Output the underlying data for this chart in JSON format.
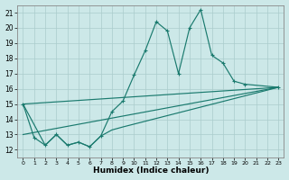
{
  "xlabel": "Humidex (Indice chaleur)",
  "xlim": [
    -0.5,
    23.5
  ],
  "ylim": [
    11.5,
    21.5
  ],
  "xticks": [
    0,
    1,
    2,
    3,
    4,
    5,
    6,
    7,
    8,
    9,
    10,
    11,
    12,
    13,
    14,
    15,
    16,
    17,
    18,
    19,
    20,
    21,
    22,
    23
  ],
  "yticks": [
    12,
    13,
    14,
    15,
    16,
    17,
    18,
    19,
    20,
    21
  ],
  "background_color": "#cce8e8",
  "grid_color": "#c0d8d8",
  "line_color": "#1a7a6e",
  "curve_x": [
    0,
    1,
    2,
    3,
    4,
    5,
    6,
    7,
    8,
    9,
    10,
    11,
    12,
    13,
    14,
    15,
    16,
    17,
    18,
    19,
    20,
    23
  ],
  "curve1_y": [
    15.0,
    12.8,
    12.3,
    13.0,
    12.3,
    12.5,
    12.2,
    12.9,
    14.5,
    15.2,
    16.9,
    18.5,
    20.4,
    19.8,
    17.0,
    20.0,
    21.2,
    18.2,
    17.7,
    16.5,
    16.3,
    16.1
  ],
  "line2_x": [
    0,
    23
  ],
  "line2_y": [
    15.0,
    16.1
  ],
  "line3_x": [
    0,
    23
  ],
  "line3_y": [
    13.0,
    16.1
  ],
  "line4_x": [
    0,
    2,
    3,
    4,
    5,
    6,
    7,
    8,
    9,
    23
  ],
  "line4_y": [
    15.0,
    12.3,
    13.0,
    12.3,
    12.5,
    12.2,
    12.9,
    13.3,
    13.5,
    16.1
  ]
}
